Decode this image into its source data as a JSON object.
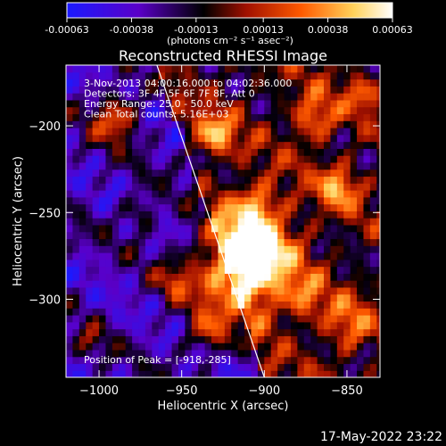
{
  "colorbar": {
    "tick_labels": [
      "-0.00063",
      "-0.00038",
      "-0.00013",
      "0.00013",
      "0.00038",
      "0.00063"
    ],
    "tick_values": [
      -0.00063,
      -0.00038,
      -0.00013,
      0.00013,
      0.00038,
      0.00063
    ],
    "range": [
      -0.00063,
      0.00063
    ],
    "unit_label": "(photons cm⁻² s⁻¹ asec⁻²)"
  },
  "chart_data": {
    "type": "heatmap",
    "title": "Reconstructed RHESSI Image",
    "xlabel": "Heliocentric X (arcsec)",
    "ylabel": "Heliocentric Y (arcsec)",
    "xlim": [
      -1020,
      -830
    ],
    "ylim": [
      -345,
      -165
    ],
    "x_ticks": [
      -1000,
      -950,
      -900,
      -850
    ],
    "x_tick_labels": [
      "−1000",
      "−950",
      "−900",
      "−850"
    ],
    "y_ticks": [
      -300,
      -250,
      -200
    ],
    "y_tick_labels": [
      "−300",
      "−250",
      "−200"
    ],
    "colormap": [
      "#1a1aff",
      "#5a00c8",
      "#000000",
      "#a01000",
      "#ff5a00",
      "#ffd25a",
      "#ffffff"
    ],
    "annotations": [
      "3-Nov-2013 04:00:16.000 to 04:02:36.000",
      "Detectors: 3F 4F 5F 6F 7F 8F, Att 0",
      "Energy Range: 25.0 - 50.0 keV",
      "Clean    Total counts: 5.16E+03"
    ],
    "peak_label": "Position of Peak = [-918,-285]",
    "peak": [
      -918,
      -285
    ],
    "limb_line": {
      "x": [
        -965,
        -900
      ],
      "y": [
        -165,
        -345
      ]
    }
  },
  "footer": {
    "date": "17-May-2022 23:22"
  }
}
